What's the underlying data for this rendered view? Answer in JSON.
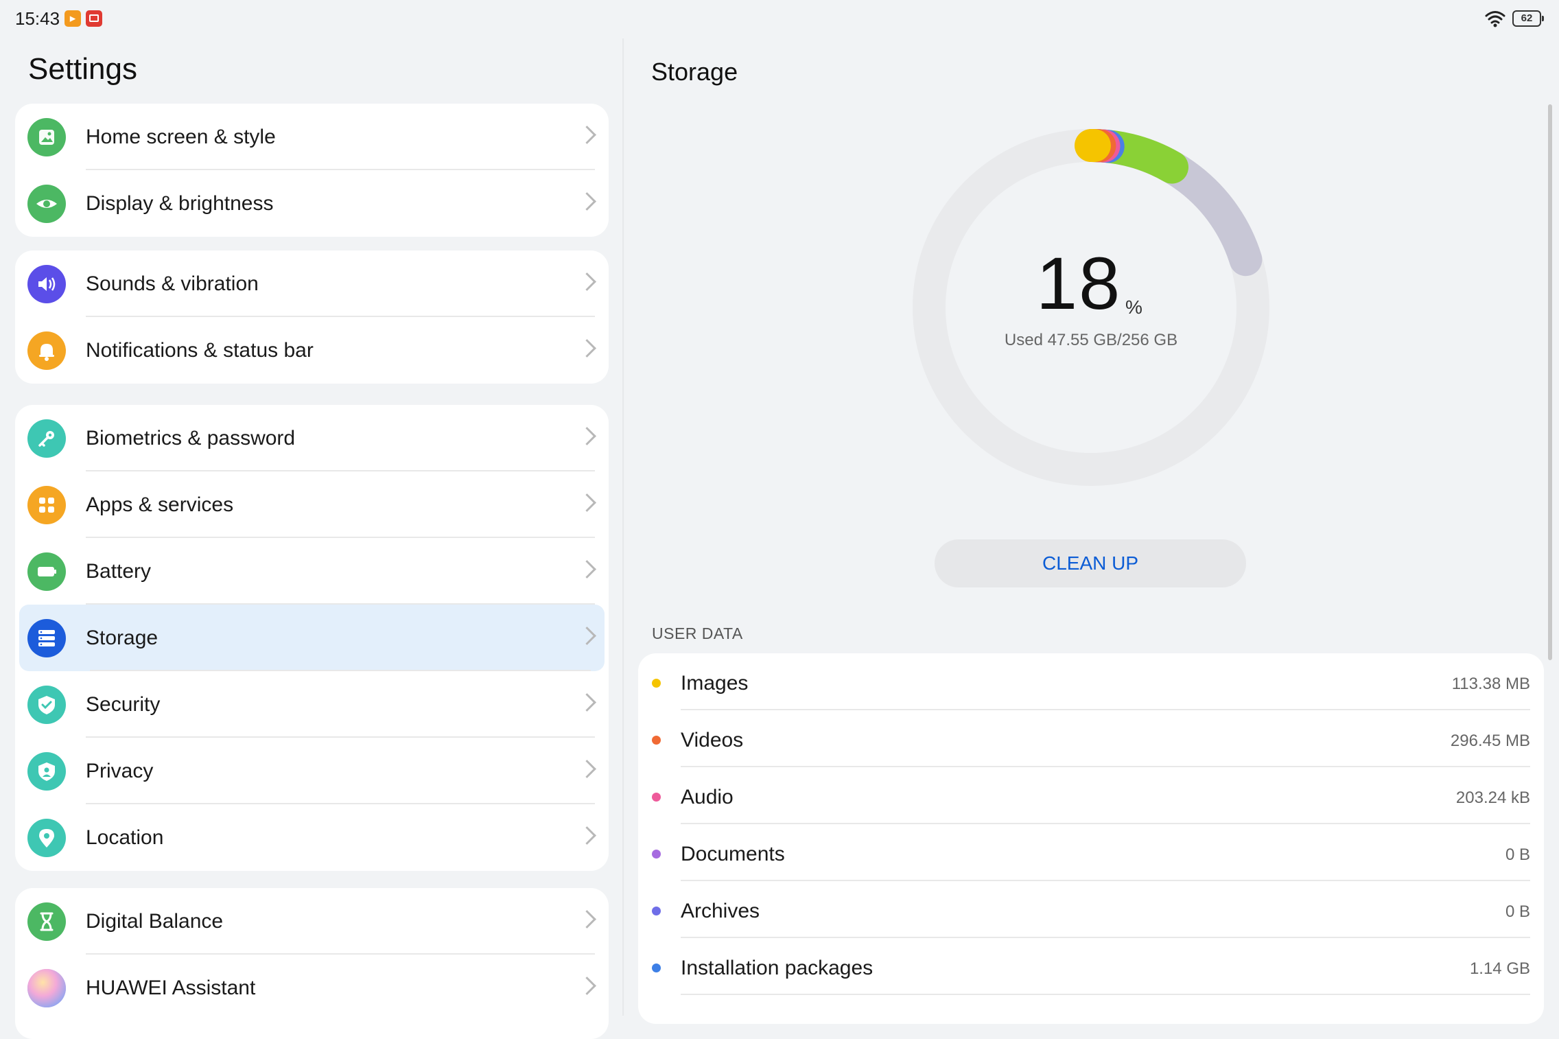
{
  "status_bar": {
    "time": "15:43",
    "battery": "62"
  },
  "sidebar": {
    "title": "Settings",
    "groups": [
      {
        "items": [
          {
            "label": "Home screen & style",
            "icon": "home-screen-icon",
            "color": "#4cb863"
          },
          {
            "label": "Display & brightness",
            "icon": "eye-icon",
            "color": "#4cb863"
          }
        ]
      },
      {
        "items": [
          {
            "label": "Sounds & vibration",
            "icon": "speaker-icon",
            "color": "#5b4ee8"
          },
          {
            "label": "Notifications & status bar",
            "icon": "bell-icon",
            "color": "#f5a623"
          }
        ]
      },
      {
        "items": [
          {
            "label": "Biometrics & password",
            "icon": "key-icon",
            "color": "#3ec7b3"
          },
          {
            "label": "Apps & services",
            "icon": "apps-grid-icon",
            "color": "#f5a623"
          },
          {
            "label": "Battery",
            "icon": "battery-icon",
            "color": "#4cb863"
          },
          {
            "label": "Storage",
            "icon": "storage-icon",
            "color": "#1c5cdb",
            "selected": true
          },
          {
            "label": "Security",
            "icon": "shield-check-icon",
            "color": "#3ec7b3"
          },
          {
            "label": "Privacy",
            "icon": "privacy-shield-icon",
            "color": "#3ec7b3"
          },
          {
            "label": "Location",
            "icon": "location-pin-icon",
            "color": "#3ec7b3"
          }
        ]
      },
      {
        "items": [
          {
            "label": "Digital Balance",
            "icon": "hourglass-icon",
            "color": "#4cb863"
          },
          {
            "label": "HUAWEI Assistant",
            "icon": "assistant-icon",
            "color": "#c9a0e8"
          }
        ]
      }
    ]
  },
  "storage": {
    "title": "Storage",
    "percent": "18",
    "percent_unit": "%",
    "used_text": "Used 47.55 GB/256 GB",
    "used_fraction": 0.18,
    "clean_up_label": "CLEAN UP",
    "section_label": "USER DATA",
    "user_data": [
      {
        "name": "Images",
        "size": "113.38 MB",
        "color": "#f5c400"
      },
      {
        "name": "Videos",
        "size": "296.45 MB",
        "color": "#f06a34"
      },
      {
        "name": "Audio",
        "size": "203.24 kB",
        "color": "#ee5a9a"
      },
      {
        "name": "Documents",
        "size": "0 B",
        "color": "#a66be0"
      },
      {
        "name": "Archives",
        "size": "0 B",
        "color": "#6f6ee8"
      },
      {
        "name": "Installation packages",
        "size": "1.14 GB",
        "color": "#3d7fe6"
      }
    ]
  }
}
